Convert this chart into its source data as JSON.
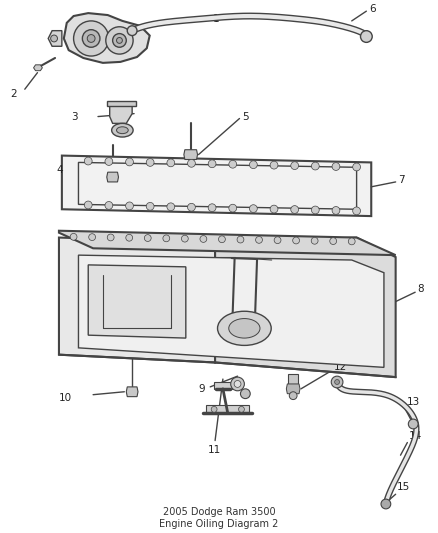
{
  "title": "2005 Dodge Ram 3500\nEngine Oiling Diagram 2",
  "background_color": "#ffffff",
  "line_color": "#444444",
  "label_color": "#333333",
  "fig_width": 4.38,
  "fig_height": 5.33,
  "dpi": 100
}
